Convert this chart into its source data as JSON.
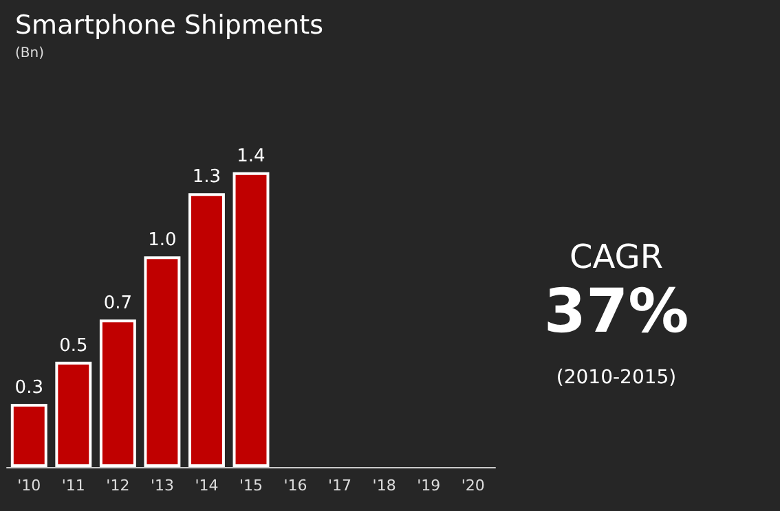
{
  "chart_data": {
    "type": "bar",
    "title": "Smartphone Shipments",
    "subtitle": "(Bn)",
    "categories": [
      "'10",
      "'11",
      "'12",
      "'13",
      "'14",
      "'15",
      "'16",
      "'17",
      "'18",
      "'19",
      "'20"
    ],
    "values": [
      0.3,
      0.5,
      0.7,
      1.0,
      1.3,
      1.4,
      null,
      null,
      null,
      null,
      null
    ],
    "color": "#c00000",
    "value_labels": [
      "0.3",
      "0.5",
      "0.7",
      "1.0",
      "1.3",
      "1.4",
      null,
      null,
      null,
      null,
      null
    ],
    "annotations": [
      "CAGR",
      "37%",
      "(2010-2015)"
    ]
  }
}
